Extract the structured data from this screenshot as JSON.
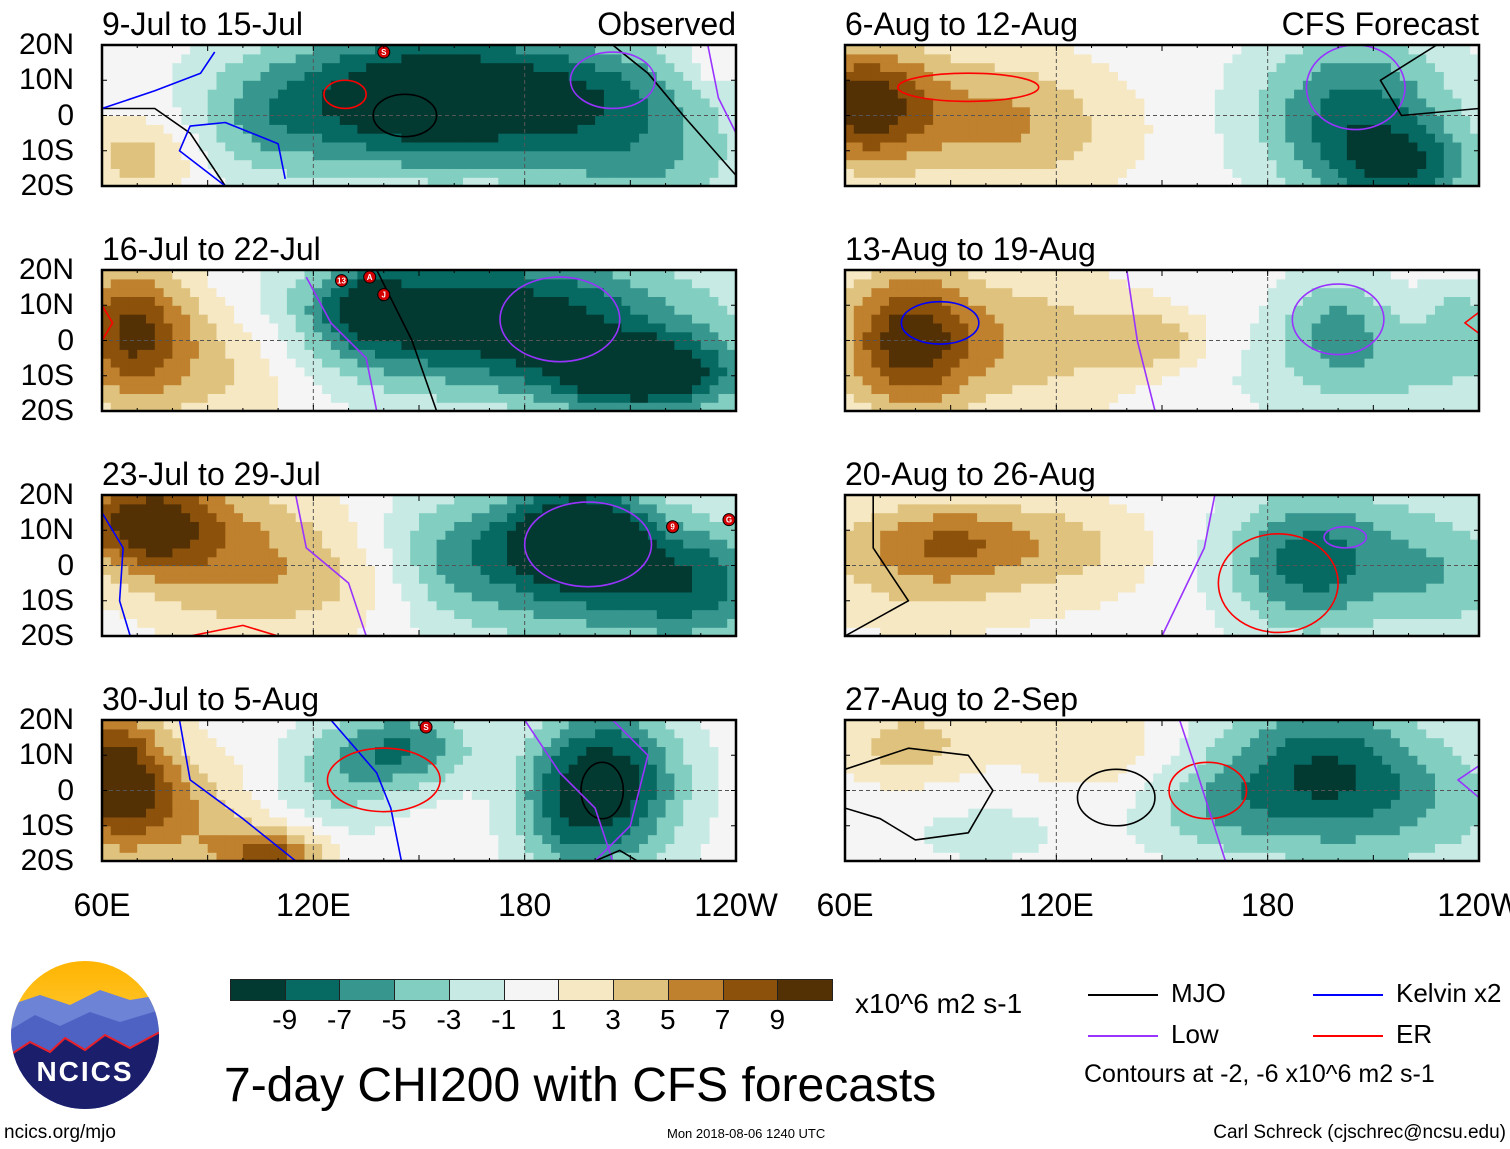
{
  "level_bounds": [
    -9,
    -7,
    -5,
    -3,
    -1,
    1,
    3,
    5,
    7,
    9
  ],
  "level_colors": [
    "#023a32",
    "#066a62",
    "#37978f",
    "#82cfc1",
    "#c7eae4",
    "#f5f5f5",
    "#f6e8c3",
    "#dfc27d",
    "#bf812d",
    "#8c510a",
    "#543005"
  ],
  "line_colors": {
    "MJO": "#000000",
    "Kelvin": "#0000ff",
    "Low": "#9933ff",
    "ER": "#ff0000"
  },
  "lat_labels": [
    "20N",
    "10N",
    "0",
    "10S",
    "20S"
  ],
  "lon_labels": [
    "60E",
    "120E",
    "180",
    "120W"
  ],
  "panels": [
    {
      "title": "9-Jul to 15-Jul",
      "tag": "Observed",
      "blobs": [
        [
          150,
          5,
          -12,
          30,
          14
        ],
        [
          200,
          5,
          -6,
          25,
          12
        ],
        [
          215,
          -15,
          -4,
          20,
          10
        ],
        [
          70,
          -12,
          4,
          12,
          8
        ],
        [
          105,
          -2,
          -3,
          14,
          12
        ],
        [
          232,
          14,
          2,
          6,
          6
        ]
      ],
      "contours": [
        {
          "type": "MJO",
          "ellipse": [
            146,
            0,
            9,
            6
          ]
        },
        {
          "type": "MJO",
          "pts": [
            [
              205,
              20
            ],
            [
              215,
              12
            ],
            [
              225,
              0
            ],
            [
              240,
              -17
            ]
          ]
        },
        {
          "type": "MJO",
          "pts": [
            [
              60,
              2
            ],
            [
              75,
              2
            ],
            [
              85,
              -5
            ],
            [
              95,
              -20
            ]
          ]
        },
        {
          "type": "Low",
          "ellipse": [
            205,
            10,
            12,
            8
          ]
        },
        {
          "type": "Low",
          "pts": [
            [
              232,
              20
            ],
            [
              235,
              5
            ],
            [
              240,
              -5
            ]
          ]
        },
        {
          "type": "ER",
          "ellipse": [
            129,
            6,
            6,
            4
          ]
        },
        {
          "type": "Kelvin",
          "pts": [
            [
              60,
              2
            ],
            [
              75,
              7
            ],
            [
              88,
              12
            ],
            [
              92,
              18
            ]
          ]
        },
        {
          "type": "Kelvin",
          "pts": [
            [
              95,
              -20
            ],
            [
              82,
              -10
            ],
            [
              85,
              -3
            ],
            [
              95,
              -2
            ],
            [
              110,
              -8
            ],
            [
              112,
              -18
            ]
          ]
        }
      ],
      "storms": [
        {
          "label": "S",
          "lon": 140,
          "lat": 18
        }
      ]
    },
    {
      "title": "6-Aug to 12-Aug",
      "tag": "CFS Forecast",
      "blobs": [
        [
          65,
          3,
          10,
          14,
          12
        ],
        [
          100,
          0,
          4,
          20,
          14
        ],
        [
          120,
          -5,
          2,
          20,
          12
        ],
        [
          205,
          0,
          -8,
          20,
          16
        ],
        [
          220,
          -15,
          -6,
          15,
          8
        ]
      ],
      "contours": [
        {
          "type": "ER",
          "ellipse": [
            95,
            8,
            20,
            4
          ]
        },
        {
          "type": "Low",
          "ellipse": [
            205,
            8,
            14,
            12
          ]
        },
        {
          "type": "MJO",
          "pts": [
            [
              228,
              20
            ],
            [
              212,
              10
            ],
            [
              218,
              0
            ],
            [
              240,
              2
            ]
          ]
        }
      ],
      "storms": []
    },
    {
      "title": "16-Jul to 22-Jul",
      "tag": "",
      "blobs": [
        [
          68,
          3,
          9,
          12,
          14
        ],
        [
          95,
          -5,
          4,
          18,
          14
        ],
        [
          170,
          6,
          -11,
          40,
          14
        ],
        [
          215,
          -10,
          -10,
          20,
          8
        ],
        [
          135,
          10,
          -5,
          10,
          8
        ]
      ],
      "contours": [
        {
          "type": "Low",
          "ellipse": [
            190,
            6,
            17,
            12
          ]
        },
        {
          "type": "MJO",
          "pts": [
            [
              138,
              20
            ],
            [
              142,
              12
            ],
            [
              148,
              0
            ],
            [
              155,
              -20
            ]
          ]
        },
        {
          "type": "ER",
          "pts": [
            [
              60,
              10
            ],
            [
              63,
              5
            ],
            [
              60,
              0
            ]
          ]
        },
        {
          "type": "Low",
          "pts": [
            [
              118,
              18
            ],
            [
              125,
              5
            ],
            [
              135,
              -5
            ],
            [
              138,
              -20
            ]
          ]
        }
      ],
      "storms": [
        {
          "label": "13",
          "lon": 128,
          "lat": 17
        },
        {
          "label": "A",
          "lon": 136,
          "lat": 18
        },
        {
          "label": "J",
          "lon": 140,
          "lat": 13
        }
      ]
    },
    {
      "title": "13-Aug to 19-Aug",
      "tag": "",
      "blobs": [
        [
          78,
          0,
          10,
          14,
          14
        ],
        [
          115,
          0,
          4,
          20,
          14
        ],
        [
          148,
          0,
          4,
          10,
          6
        ],
        [
          200,
          5,
          -5,
          12,
          10
        ],
        [
          235,
          5,
          -4,
          8,
          8
        ],
        [
          215,
          -10,
          -3,
          30,
          10
        ]
      ],
      "contours": [
        {
          "type": "Kelvin",
          "ellipse": [
            87,
            5,
            11,
            6
          ]
        },
        {
          "type": "Low",
          "ellipse": [
            200,
            6,
            13,
            10
          ]
        },
        {
          "type": "Low",
          "pts": [
            [
              140,
              20
            ],
            [
              143,
              0
            ],
            [
              148,
              -20
            ]
          ]
        },
        {
          "type": "ER",
          "pts": [
            [
              240,
              8
            ],
            [
              236,
              5
            ],
            [
              240,
              2
            ]
          ]
        }
      ],
      "storms": []
    },
    {
      "title": "23-Jul to 29-Jul",
      "tag": "",
      "blobs": [
        [
          72,
          12,
          10,
          14,
          10
        ],
        [
          100,
          2,
          5,
          20,
          16
        ],
        [
          130,
          -5,
          2,
          15,
          10
        ],
        [
          195,
          10,
          -11,
          14,
          10
        ],
        [
          200,
          -5,
          -6,
          30,
          14
        ],
        [
          160,
          5,
          -4,
          15,
          12
        ],
        [
          230,
          -5,
          -5,
          15,
          12
        ]
      ],
      "contours": [
        {
          "type": "Low",
          "ellipse": [
            198,
            6,
            18,
            12
          ]
        },
        {
          "type": "Kelvin",
          "pts": [
            [
              60,
              15
            ],
            [
              66,
              5
            ],
            [
              65,
              -10
            ],
            [
              68,
              -20
            ]
          ]
        },
        {
          "type": "Low",
          "pts": [
            [
              115,
              20
            ],
            [
              118,
              5
            ],
            [
              130,
              -5
            ],
            [
              135,
              -20
            ]
          ]
        },
        {
          "type": "ER",
          "pts": [
            [
              85,
              -20
            ],
            [
              100,
              -17
            ],
            [
              110,
              -20
            ]
          ]
        }
      ],
      "storms": [
        {
          "label": "9",
          "lon": 222,
          "lat": 11
        },
        {
          "label": "G",
          "lon": 238,
          "lat": 13
        }
      ]
    },
    {
      "title": "20-Aug to 26-Aug",
      "tag": "",
      "blobs": [
        [
          90,
          8,
          6,
          22,
          8
        ],
        [
          85,
          -5,
          3,
          25,
          10
        ],
        [
          130,
          5,
          2,
          15,
          10
        ],
        [
          190,
          0,
          -6,
          15,
          14
        ],
        [
          210,
          5,
          -3,
          25,
          14
        ],
        [
          230,
          -5,
          -3,
          15,
          12
        ]
      ],
      "contours": [
        {
          "type": "MJO",
          "pts": [
            [
              68,
              20
            ],
            [
              68,
              5
            ],
            [
              78,
              -10
            ],
            [
              60,
              -20
            ]
          ]
        },
        {
          "type": "ER",
          "ellipse": [
            183,
            -5,
            17,
            14
          ]
        },
        {
          "type": "Low",
          "ellipse": [
            202,
            8,
            6,
            3
          ]
        },
        {
          "type": "Low",
          "pts": [
            [
              165,
              20
            ],
            [
              162,
              5
            ],
            [
              150,
              -20
            ]
          ]
        }
      ],
      "storms": []
    },
    {
      "title": "30-Jul to 5-Aug",
      "tag": "",
      "blobs": [
        [
          63,
          5,
          10,
          10,
          14
        ],
        [
          80,
          -5,
          5,
          14,
          12
        ],
        [
          108,
          -18,
          8,
          12,
          6
        ],
        [
          145,
          12,
          -7,
          14,
          8
        ],
        [
          205,
          2,
          -10,
          14,
          16
        ],
        [
          190,
          -5,
          -4,
          10,
          14
        ],
        [
          125,
          0,
          -3,
          12,
          12
        ]
      ],
      "contours": [
        {
          "type": "MJO",
          "ellipse": [
            202,
            0,
            6,
            8
          ]
        },
        {
          "type": "Kelvin",
          "pts": [
            [
              82,
              20
            ],
            [
              85,
              3
            ],
            [
              100,
              -8
            ],
            [
              115,
              -20
            ]
          ]
        },
        {
          "type": "Kelvin",
          "pts": [
            [
              125,
              20
            ],
            [
              138,
              5
            ],
            [
              142,
              -5
            ],
            [
              145,
              -20
            ]
          ]
        },
        {
          "type": "ER",
          "ellipse": [
            140,
            3,
            16,
            9
          ]
        },
        {
          "type": "Low",
          "pts": [
            [
              180,
              20
            ],
            [
              190,
              5
            ],
            [
              200,
              -5
            ],
            [
              205,
              -20
            ]
          ]
        },
        {
          "type": "Low",
          "pts": [
            [
              205,
              20
            ],
            [
              215,
              10
            ],
            [
              210,
              -10
            ],
            [
              200,
              -20
            ]
          ]
        },
        {
          "type": "MJO",
          "pts": [
            [
              200,
              -20
            ],
            [
              207,
              -17
            ],
            [
              212,
              -20
            ]
          ]
        }
      ],
      "storms": [
        {
          "label": "S",
          "lon": 152,
          "lat": 18
        }
      ]
    },
    {
      "title": "27-Aug to 2-Sep",
      "tag": "",
      "blobs": [
        [
          78,
          13,
          4,
          14,
          8
        ],
        [
          130,
          12,
          3,
          15,
          8
        ],
        [
          100,
          -12,
          -1.5,
          20,
          8
        ],
        [
          195,
          8,
          -7,
          20,
          14
        ],
        [
          215,
          -5,
          -4,
          30,
          14
        ],
        [
          165,
          -5,
          -3,
          15,
          10
        ]
      ],
      "contours": [
        {
          "type": "MJO",
          "pts": [
            [
              60,
              6
            ],
            [
              78,
              12
            ],
            [
              95,
              10
            ],
            [
              102,
              0
            ],
            [
              95,
              -12
            ],
            [
              80,
              -14
            ],
            [
              70,
              -8
            ],
            [
              60,
              -5
            ]
          ]
        },
        {
          "type": "MJO",
          "ellipse": [
            137,
            -2,
            11,
            8
          ]
        },
        {
          "type": "ER",
          "ellipse": [
            163,
            0,
            11,
            8
          ]
        },
        {
          "type": "Low",
          "pts": [
            [
              155,
              20
            ],
            [
              160,
              5
            ],
            [
              168,
              -20
            ]
          ]
        },
        {
          "type": "Low",
          "pts": [
            [
              240,
              7
            ],
            [
              234,
              3
            ],
            [
              240,
              -2
            ]
          ]
        }
      ],
      "storms": []
    }
  ],
  "colorbar": {
    "tick_labels": [
      "-9",
      "-7",
      "-5",
      "-3",
      "-1",
      "1",
      "3",
      "5",
      "7",
      "9"
    ],
    "units": "x10^6 m2 s-1"
  },
  "main_title": "7-day CHI200 with CFS forecasts",
  "line_legend": [
    {
      "type": "MJO",
      "label": "MJO"
    },
    {
      "type": "Kelvin",
      "label": "Kelvin x2"
    },
    {
      "type": "Low",
      "label": "Low"
    },
    {
      "type": "ER",
      "label": "ER"
    }
  ],
  "contour_note": "Contours at -2, -6 x10^6 m2 s-1",
  "logo_text": "NCICS",
  "footer": {
    "left": "ncics.org/mjo",
    "center": "Mon 2018-08-06 1240 UTC",
    "right": "Carl Schreck (cjschrec@ncsu.edu)"
  }
}
